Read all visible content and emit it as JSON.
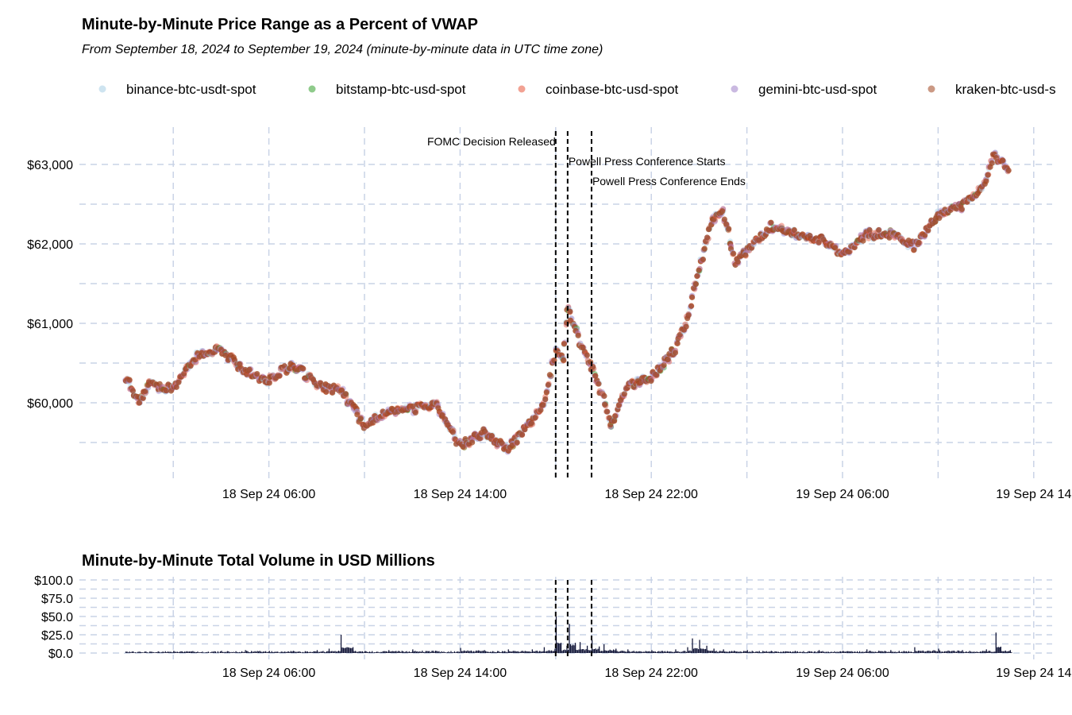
{
  "chart_data": [
    {
      "type": "scatter",
      "title": "Minute-by-Minute Price Range as a Percent of VWAP",
      "subtitle": "From September 18, 2024 to September 19, 2024 (minute-by-minute data in UTC time zone)",
      "xlabel": "",
      "ylabel": "",
      "x_unit": "hours since 18 Sep 24 00:00 UTC",
      "xlim": [
        -2,
        38.5
      ],
      "ylim": [
        59050,
        63450
      ],
      "grid": true,
      "legend_position": "top",
      "y_ticks": [
        "$60,000",
        "$61,000",
        "$62,000",
        "$63,000"
      ],
      "y_tick_values": [
        60000,
        61000,
        62000,
        63000
      ],
      "x_ticks": [
        "18 Sep 24 06:00",
        "18 Sep 24 14:00",
        "18 Sep 24 22:00",
        "19 Sep 24 06:00",
        "19 Sep 24 14"
      ],
      "x_tick_values": [
        6,
        14,
        22,
        30,
        38
      ],
      "series": [
        {
          "name": "binance-btc-usdt-spot",
          "color": "#a6cee3"
        },
        {
          "name": "bitstamp-btc-usd-spot",
          "color": "#33a02c"
        },
        {
          "name": "coinbase-btc-usd-spot",
          "color": "#e8553a"
        },
        {
          "name": "gemini-btc-usd-spot",
          "color": "#9f7fc8"
        },
        {
          "name": "kraken-btc-usd-s",
          "color": "#a0461f"
        }
      ],
      "price_points": {
        "x": [
          0,
          0.5,
          1,
          2,
          3,
          4,
          5,
          6,
          7,
          8,
          9,
          10,
          11,
          12,
          13,
          14,
          15,
          16,
          17,
          17.5,
          18,
          18.3,
          18.5,
          19,
          19.5,
          20,
          20.3,
          21,
          22,
          23,
          23.5,
          24,
          24.5,
          25,
          25.5,
          26,
          27,
          28,
          29,
          30,
          31,
          32,
          33,
          34,
          35,
          36,
          36.3,
          37
        ],
        "y": [
          60320,
          60020,
          60220,
          60170,
          60590,
          60670,
          60390,
          60290,
          60490,
          60220,
          60150,
          59720,
          59890,
          59920,
          59970,
          59470,
          59620,
          59420,
          59770,
          59970,
          60670,
          60520,
          61220,
          60770,
          60470,
          60070,
          59720,
          60220,
          60320,
          60670,
          61070,
          61670,
          62270,
          62420,
          61770,
          61920,
          62220,
          62120,
          62070,
          61870,
          62120,
          62120,
          61970,
          62370,
          62470,
          62770,
          63120,
          62920
        ]
      },
      "annotations": [
        {
          "label": "FOMC Decision Released",
          "x": 18.0
        },
        {
          "label": "Powell Press Conference Starts",
          "x": 18.5
        },
        {
          "label": "Powell Press Conference Ends",
          "x": 19.5
        }
      ]
    },
    {
      "type": "area",
      "title": "Minute-by-Minute Total Volume in USD Millions",
      "ylim": [
        0,
        100
      ],
      "y_ticks": [
        "$0.0",
        "$25.0",
        "$50.0",
        "$75.0",
        "$100.0"
      ],
      "y_tick_values": [
        0,
        25,
        50,
        75,
        100
      ],
      "x_ticks": [
        "18 Sep 24 06:00",
        "18 Sep 24 14:00",
        "18 Sep 24 22:00",
        "19 Sep 24 06:00",
        "19 Sep 24 14"
      ],
      "x_tick_values": [
        6,
        14,
        22,
        30,
        38
      ],
      "color": "#14183a",
      "volume_points": {
        "x": [
          0,
          1,
          2,
          3,
          4,
          5,
          6,
          7,
          8,
          8.5,
          9,
          9.5,
          10,
          11,
          12,
          13,
          14,
          15,
          16,
          17,
          17.5,
          17.95,
          18,
          18.2,
          18.45,
          18.55,
          18.8,
          19,
          19.3,
          19.5,
          19.8,
          20,
          20.5,
          21,
          22,
          23,
          23.5,
          23.7,
          24,
          24.3,
          24.6,
          25,
          26,
          27,
          28,
          29,
          30,
          31,
          32,
          33,
          34,
          35,
          36,
          36.4,
          36.6,
          37
        ],
        "y": [
          2,
          2,
          3,
          2,
          3,
          4,
          3,
          3,
          4,
          6,
          25,
          4,
          3,
          4,
          5,
          3,
          7,
          4,
          5,
          5,
          8,
          6,
          50,
          12,
          10,
          40,
          14,
          15,
          10,
          18,
          9,
          12,
          6,
          5,
          4,
          5,
          8,
          20,
          18,
          10,
          6,
          5,
          4,
          3,
          3,
          4,
          3,
          5,
          4,
          8,
          6,
          4,
          5,
          28,
          8,
          4
        ]
      },
      "annotations_x": [
        18.0,
        18.5,
        19.5
      ]
    }
  ]
}
